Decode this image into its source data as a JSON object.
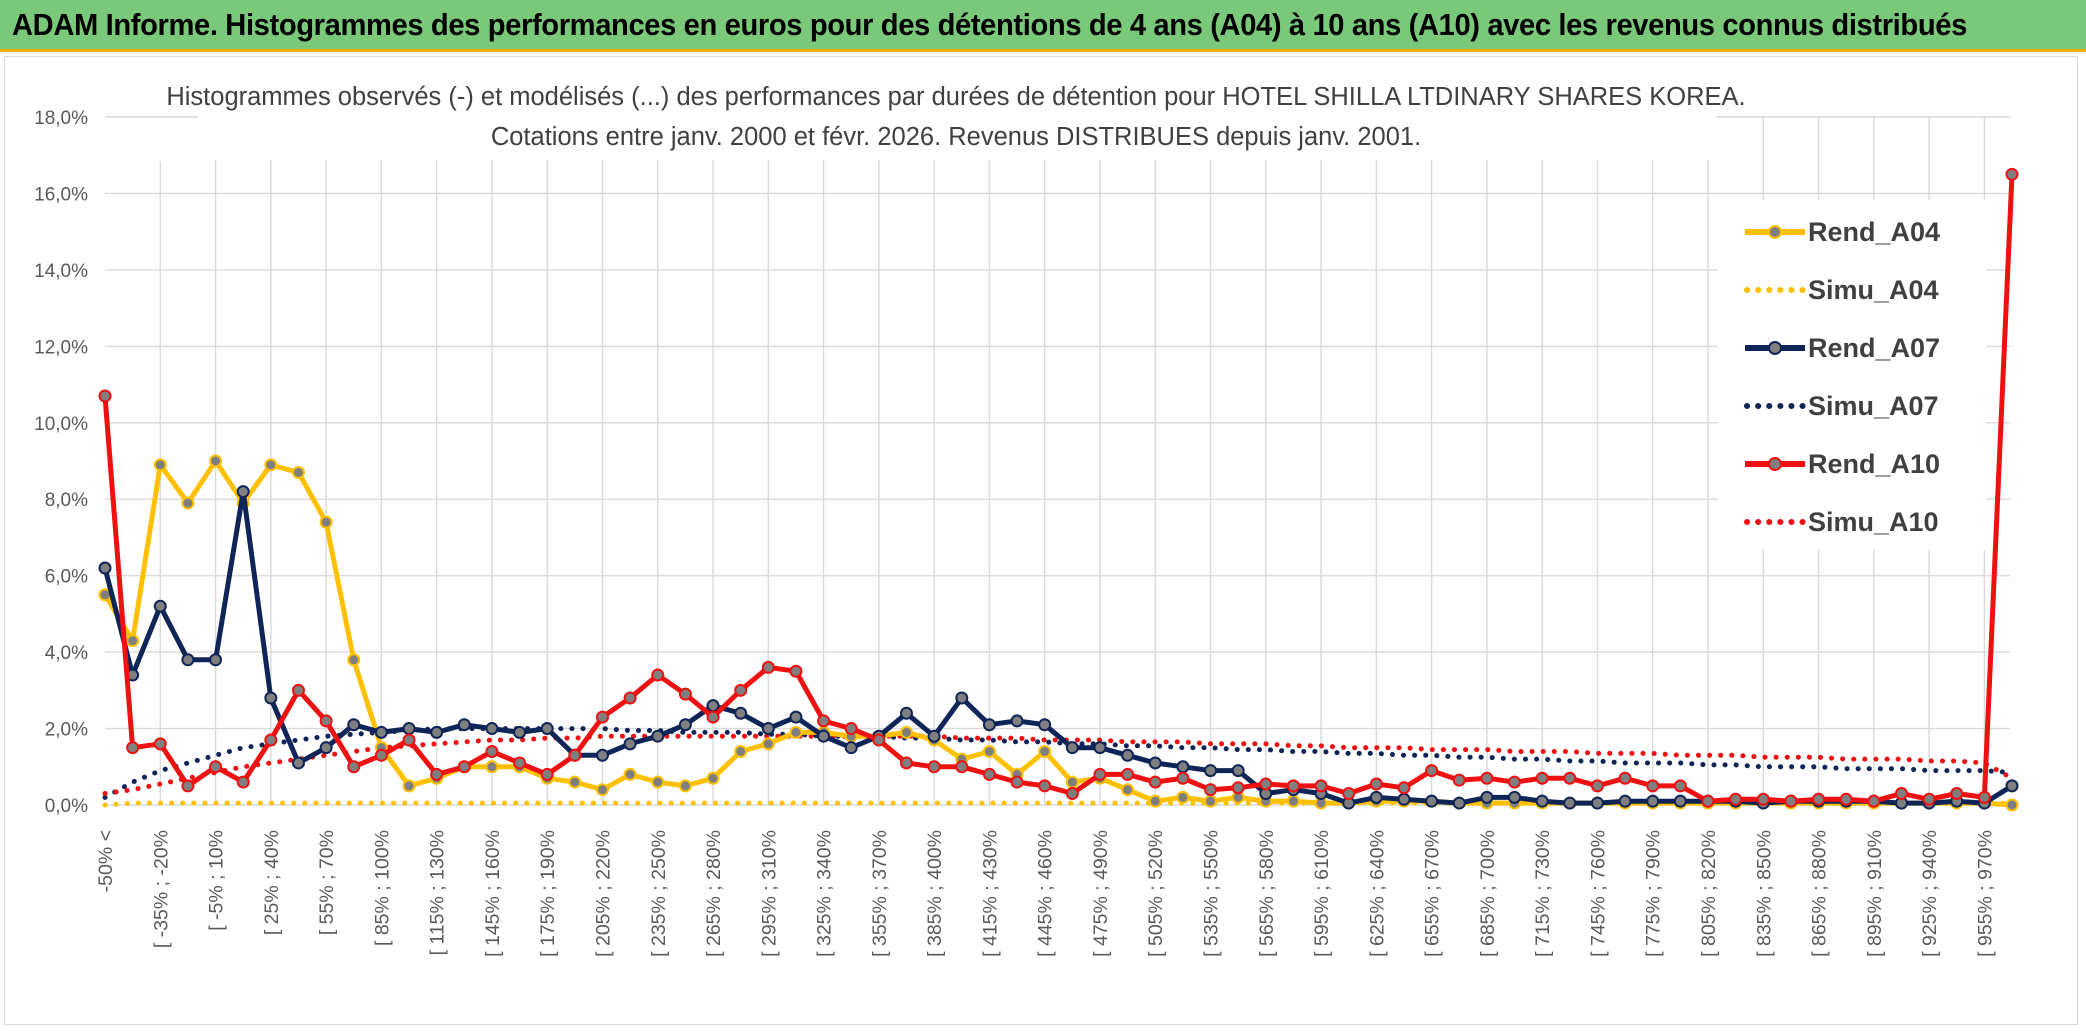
{
  "banner": {
    "title": "ADAM Informe. Histogrammes des performances en euros pour des détentions de 4 ans (A04) à 10 ans (A10) avec les revenus connus distribués"
  },
  "chart_data": {
    "type": "line",
    "title": "Histogrammes observés (-) et modélisés (...) des performances par durées de détention pour HOTEL SHILLA LTDINARY SHARES KOREA.",
    "subtitle": "Cotations entre janv. 2000 et févr. 2026. Revenus DISTRIBUES depuis janv. 2001.",
    "xlabel": "",
    "ylabel": "",
    "ylim": [
      0,
      18
    ],
    "yticks": [
      "0,0%",
      "2,0%",
      "4,0%",
      "6,0%",
      "8,0%",
      "10,0%",
      "12,0%",
      "14,0%",
      "16,0%",
      "18,0%"
    ],
    "grid": true,
    "legend_position": "right",
    "x_tick_labels": [
      "-50% <",
      "[ -35% ; -20%",
      "[ -5% ; 10%",
      "[ 25% ; 40%",
      "[ 55% ; 70%",
      "[ 85% ; 100%",
      "[ 115% ; 130%",
      "[ 145% ; 160%",
      "[ 175% ; 190%",
      "[ 205% ; 220%",
      "[ 235% ; 250%",
      "[ 265% ; 280%",
      "[ 295% ; 310%",
      "[ 325% ; 340%",
      "[ 355% ; 370%",
      "[ 385% ; 400%",
      "[ 415% ; 430%",
      "[ 445% ; 460%",
      "[ 475% ; 490%",
      "[ 505% ; 520%",
      "[ 535% ; 550%",
      "[ 565% ; 580%",
      "[ 595% ; 610%",
      "[ 625% ; 640%",
      "[ 655% ; 670%",
      "[ 685% ; 700%",
      "[ 715% ; 730%",
      "[ 745% ; 760%",
      "[ 775% ; 790%",
      "[ 805% ; 820%",
      "[ 835% ; 850%",
      "[ 865% ; 880%",
      "[ 895% ; 910%",
      "[ 925% ; 940%",
      "[ 955% ; 970%"
    ],
    "categories_count": 70,
    "series": [
      {
        "name": "Rend_A04",
        "style": "solid",
        "color": "#ffc000",
        "values": [
          5.5,
          4.3,
          8.9,
          7.9,
          9.0,
          7.9,
          8.9,
          8.7,
          7.4,
          3.8,
          1.5,
          0.5,
          0.7,
          1.0,
          1.0,
          1.0,
          0.7,
          0.6,
          0.4,
          0.8,
          0.6,
          0.5,
          0.7,
          1.4,
          1.6,
          1.9,
          1.9,
          1.8,
          1.8,
          1.9,
          1.7,
          1.2,
          1.4,
          0.8,
          1.4,
          0.6,
          0.7,
          0.4,
          0.1,
          0.2,
          0.1,
          0.2,
          0.1,
          0.1,
          0.05,
          0.05,
          0.1,
          0.1,
          0.1,
          0.05,
          0.05,
          0.05,
          0.05,
          0.05,
          0.05,
          0.05,
          0.05,
          0.05,
          0.05,
          0.05,
          0.05,
          0.05,
          0.05,
          0.05,
          0.05,
          0.05,
          0.05,
          0.05,
          0.05,
          0.0
        ]
      },
      {
        "name": "Simu_A04",
        "style": "dotted",
        "color": "#ffc000",
        "values": [
          0.0,
          0.05,
          0.05,
          0.05,
          0.05,
          0.05,
          0.05,
          0.05,
          0.05,
          0.05,
          0.05,
          0.05,
          0.05,
          0.05,
          0.05,
          0.05,
          0.05,
          0.05,
          0.05,
          0.05,
          0.05,
          0.05,
          0.05,
          0.05,
          0.05,
          0.05,
          0.05,
          0.05,
          0.05,
          0.05,
          0.05,
          0.05,
          0.05,
          0.05,
          0.05,
          0.05,
          0.05,
          0.05,
          0.05,
          0.05,
          0.05,
          0.05,
          0.05,
          0.05,
          0.05,
          0.05,
          0.05,
          0.05,
          0.05,
          0.05,
          0.05,
          0.05,
          0.05,
          0.05,
          0.05,
          0.05,
          0.05,
          0.05,
          0.05,
          0.05,
          0.05,
          0.05,
          0.05,
          0.05,
          0.05,
          0.05,
          0.05,
          0.05,
          0.05,
          0.05
        ]
      },
      {
        "name": "Rend_A07",
        "style": "solid",
        "color": "#0f2457",
        "values": [
          6.2,
          3.4,
          5.2,
          3.8,
          3.8,
          8.2,
          2.8,
          1.1,
          1.5,
          2.1,
          1.9,
          2.0,
          1.9,
          2.1,
          2.0,
          1.9,
          2.0,
          1.3,
          1.3,
          1.6,
          1.8,
          2.1,
          2.6,
          2.4,
          2.0,
          2.3,
          1.8,
          1.5,
          1.8,
          2.4,
          1.8,
          2.8,
          2.1,
          2.2,
          2.1,
          1.5,
          1.5,
          1.3,
          1.1,
          1.0,
          0.9,
          0.9,
          0.3,
          0.4,
          0.3,
          0.05,
          0.2,
          0.15,
          0.1,
          0.05,
          0.2,
          0.2,
          0.1,
          0.05,
          0.05,
          0.1,
          0.1,
          0.1,
          0.1,
          0.1,
          0.05,
          0.1,
          0.1,
          0.1,
          0.1,
          0.05,
          0.05,
          0.1,
          0.05,
          0.5
        ]
      },
      {
        "name": "Simu_A07",
        "style": "dotted",
        "color": "#0f2457",
        "values": [
          0.2,
          0.6,
          0.9,
          1.1,
          1.3,
          1.5,
          1.6,
          1.7,
          1.8,
          1.85,
          1.9,
          1.95,
          2.0,
          2.0,
          2.0,
          2.0,
          2.0,
          2.0,
          2.0,
          1.95,
          1.95,
          1.9,
          1.9,
          1.9,
          1.85,
          1.85,
          1.8,
          1.8,
          1.8,
          1.75,
          1.75,
          1.7,
          1.7,
          1.65,
          1.65,
          1.6,
          1.6,
          1.55,
          1.55,
          1.5,
          1.5,
          1.45,
          1.45,
          1.4,
          1.4,
          1.35,
          1.35,
          1.3,
          1.3,
          1.25,
          1.25,
          1.2,
          1.2,
          1.15,
          1.15,
          1.1,
          1.1,
          1.1,
          1.05,
          1.05,
          1.0,
          1.0,
          1.0,
          0.95,
          0.95,
          0.95,
          0.9,
          0.9,
          0.9,
          0.85
        ]
      },
      {
        "name": "Rend_A10",
        "style": "solid",
        "color": "#ee1111",
        "values": [
          10.7,
          1.5,
          1.6,
          0.5,
          1.0,
          0.6,
          1.7,
          3.0,
          2.2,
          1.0,
          1.3,
          1.7,
          0.8,
          1.0,
          1.4,
          1.1,
          0.8,
          1.3,
          2.3,
          2.8,
          3.4,
          2.9,
          2.3,
          3.0,
          3.6,
          3.5,
          2.2,
          2.0,
          1.7,
          1.1,
          1.0,
          1.0,
          0.8,
          0.6,
          0.5,
          0.3,
          0.8,
          0.8,
          0.6,
          0.7,
          0.4,
          0.45,
          0.55,
          0.5,
          0.5,
          0.3,
          0.55,
          0.45,
          0.9,
          0.65,
          0.7,
          0.6,
          0.7,
          0.7,
          0.5,
          0.7,
          0.5,
          0.5,
          0.1,
          0.15,
          0.15,
          0.1,
          0.15,
          0.15,
          0.1,
          0.3,
          0.15,
          0.3,
          0.2,
          16.5
        ]
      },
      {
        "name": "Simu_A10",
        "style": "dotted",
        "color": "#ee1111",
        "values": [
          0.3,
          0.4,
          0.55,
          0.7,
          0.85,
          1.0,
          1.1,
          1.2,
          1.3,
          1.4,
          1.5,
          1.55,
          1.6,
          1.65,
          1.7,
          1.7,
          1.75,
          1.75,
          1.8,
          1.8,
          1.8,
          1.8,
          1.8,
          1.8,
          1.8,
          1.8,
          1.8,
          1.8,
          1.8,
          1.8,
          1.8,
          1.75,
          1.75,
          1.75,
          1.7,
          1.7,
          1.7,
          1.65,
          1.65,
          1.65,
          1.6,
          1.6,
          1.6,
          1.55,
          1.55,
          1.5,
          1.5,
          1.5,
          1.45,
          1.45,
          1.45,
          1.4,
          1.4,
          1.4,
          1.35,
          1.35,
          1.35,
          1.3,
          1.3,
          1.3,
          1.25,
          1.25,
          1.25,
          1.2,
          1.2,
          1.2,
          1.15,
          1.15,
          1.1,
          0.7
        ]
      }
    ]
  }
}
